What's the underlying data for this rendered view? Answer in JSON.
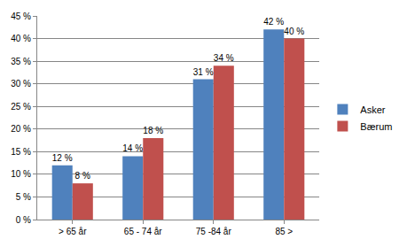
{
  "chart_data": {
    "type": "bar",
    "categories": [
      "> 65 år",
      "65 - 74 år",
      "75 -84 år",
      "85 >"
    ],
    "series": [
      {
        "name": "Asker",
        "color": "#4f81bd",
        "values": [
          12,
          14,
          31,
          42
        ],
        "value_labels": [
          "12 %",
          "14 %",
          "31 %",
          "42 %"
        ]
      },
      {
        "name": "Bærum",
        "color": "#c0504d",
        "values": [
          8,
          18,
          34,
          40
        ],
        "value_labels": [
          "8 %",
          "18 %",
          "34 %",
          "40 %"
        ]
      }
    ],
    "ylim": [
      0,
      45
    ],
    "yticks": [
      {
        "value": 0,
        "label": "0 %"
      },
      {
        "value": 5,
        "label": "5 %"
      },
      {
        "value": 10,
        "label": "10 %"
      },
      {
        "value": 15,
        "label": "15 %"
      },
      {
        "value": 20,
        "label": "20 %"
      },
      {
        "value": 25,
        "label": "25 %"
      },
      {
        "value": 30,
        "label": "30 %"
      },
      {
        "value": 35,
        "label": "35 %"
      },
      {
        "value": 40,
        "label": "40 %"
      },
      {
        "value": 45,
        "label": "45 %"
      }
    ],
    "grid": true,
    "legend": "right",
    "data_labels": true
  }
}
